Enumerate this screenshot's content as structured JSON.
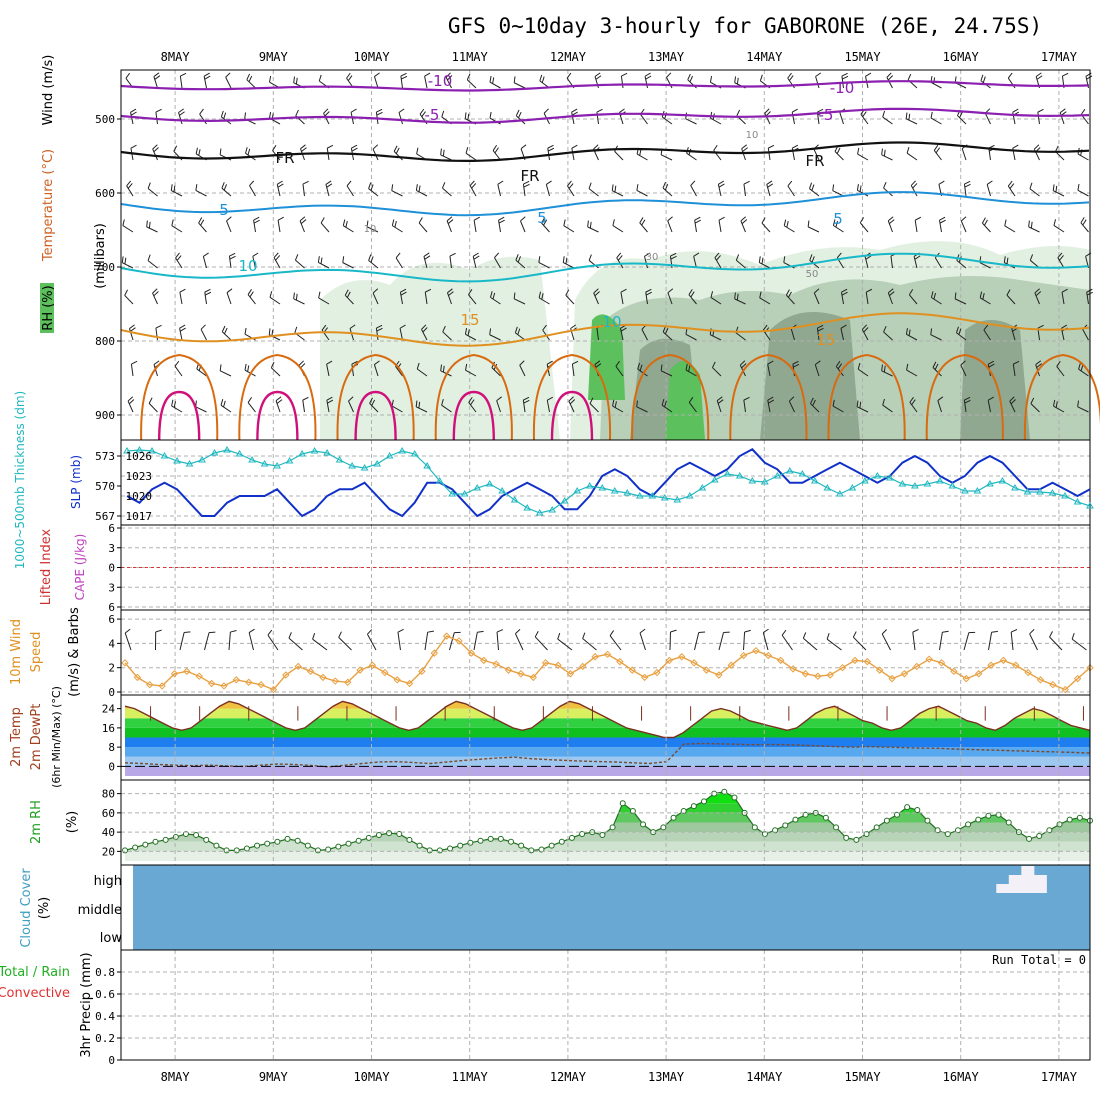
{
  "title": "GFS 0~10day 3-hourly for GABORONE (26E, 24.75S)",
  "dates": [
    "8MAY",
    "9MAY",
    "10MAY",
    "11MAY",
    "12MAY",
    "13MAY",
    "14MAY",
    "15MAY",
    "16MAY",
    "17MAY"
  ],
  "colors": {
    "purple": "#8a1fb0",
    "black": "#111111",
    "blue": "#1e90d8",
    "cyan": "#18b8c8",
    "orange": "#e09020",
    "darkorange": "#d86a10",
    "magenta": "#d0107a",
    "slp": "#1030c8",
    "thick": "#20b8c0",
    "wind10": "#e8a040",
    "rhgreen": "#30b030",
    "cloud": "#6aa8d4",
    "grid": "#b0b0b0",
    "red": "#e03030"
  },
  "panels": {
    "upper": {
      "ylabel": "(millibars)",
      "legend_wind": "Wind (m/s)",
      "legend_temp": "Temperature (°C)",
      "legend_rh": "RH (%)",
      "yticks": [
        500,
        600,
        700,
        800,
        900
      ],
      "ylim": [
        450,
        950
      ],
      "contour_labels": {
        "m10": "-10",
        "m5": "-5",
        "fr": "FR",
        "p5": "5",
        "p10": "10",
        "p15": "15",
        "rh10": "10",
        "rh30": "30",
        "rh50": "50"
      }
    },
    "slp": {
      "ylabel_thick": "1000~500mb Thickness (dm)",
      "ylabel_slp": "SLP (mb)",
      "thick_ticks": [
        567,
        570,
        573
      ],
      "slp_ticks": [
        1017,
        1020,
        1023,
        1026
      ]
    },
    "li": {
      "ylabel_li": "Lifted Index",
      "ylabel_cape": "CAPE (J/kg)",
      "ticks": [
        "6",
        "3",
        "0",
        "3",
        "6"
      ]
    },
    "wind10": {
      "ylabel1": "10m Wind",
      "ylabel2": "Speed",
      "ylabel3": "(m/s) & Barbs",
      "ticks": [
        0,
        2,
        4,
        6
      ],
      "ylim": [
        0,
        6.5
      ]
    },
    "temp": {
      "ylabel1": "2m Temp",
      "ylabel2": "2m DewPt",
      "ylabel3": "(6hr Min/Max) (°C)",
      "ticks": [
        0,
        8,
        16,
        24
      ],
      "ylim": [
        -4,
        28
      ]
    },
    "rh": {
      "ylabel1": "2m RH",
      "ylabel2": "(%)",
      "ticks": [
        20,
        40,
        60,
        80
      ],
      "ylim": [
        10,
        90
      ]
    },
    "cloud": {
      "ylabel1": "Cloud Cover",
      "ylabel2": "(%)",
      "levels": [
        "high",
        "middle",
        "low"
      ]
    },
    "precip": {
      "ylabel1": "Total / Rain",
      "ylabel2": "Convective",
      "ylabel3": "3hr Precip (mm)",
      "ticks": [
        "0",
        "0.2",
        "0.4",
        "0.6",
        "0.8"
      ],
      "run_total": "Run Total = 0"
    }
  },
  "chart_data": {
    "type": "line",
    "time_axis": "hours since 8MAY 00UTC, 3-hourly, 0-225",
    "slp_mb": [
      1020,
      1019,
      1021,
      1022,
      1021,
      1019,
      1017,
      1017,
      1019,
      1020,
      1020,
      1020,
      1021,
      1019,
      1017,
      1018,
      1020,
      1021,
      1021,
      1022,
      1020,
      1018,
      1017,
      1019,
      1022,
      1022,
      1021,
      1019,
      1017,
      1018,
      1020,
      1021,
      1022,
      1021,
      1020,
      1018,
      1018,
      1020,
      1023,
      1024,
      1023,
      1021,
      1020,
      1022,
      1024,
      1025,
      1024,
      1023,
      1024,
      1026,
      1027,
      1025,
      1024,
      1022,
      1022,
      1023,
      1024,
      1025,
      1024,
      1023,
      1022,
      1023,
      1025,
      1026,
      1025,
      1023,
      1022,
      1023,
      1025,
      1026,
      1025,
      1023,
      1021,
      1021,
      1022,
      1021,
      1020,
      1021
    ],
    "thickness_dm": [
      573.5,
      573.6,
      573.5,
      573.0,
      572.5,
      572.2,
      572.6,
      573.3,
      573.6,
      573.2,
      572.6,
      572.2,
      572.0,
      572.5,
      573.2,
      573.5,
      573.3,
      572.6,
      572.0,
      571.8,
      572.2,
      573.0,
      573.5,
      573.2,
      572.0,
      570.5,
      569.2,
      569.2,
      569.8,
      570.2,
      569.5,
      568.6,
      567.8,
      567.3,
      567.6,
      568.5,
      569.5,
      570.0,
      569.8,
      569.5,
      569.3,
      569.0,
      569.0,
      568.8,
      568.6,
      569.0,
      569.8,
      570.6,
      571.2,
      571.0,
      570.5,
      570.4,
      571.0,
      571.5,
      571.2,
      570.5,
      569.8,
      569.2,
      569.8,
      570.5,
      571.0,
      570.8,
      570.2,
      570.0,
      570.2,
      570.5,
      570.0,
      569.5,
      569.5,
      570.2,
      570.5,
      569.8,
      569.4,
      569.4,
      569.3,
      569.0,
      568.4,
      568.0
    ],
    "wind10_ms": [
      2.4,
      1.2,
      0.6,
      0.5,
      1.5,
      1.7,
      1.3,
      0.7,
      0.5,
      1.0,
      0.8,
      0.6,
      0.2,
      1.4,
      2.1,
      1.7,
      1.2,
      0.9,
      0.8,
      1.8,
      2.2,
      1.6,
      1.0,
      0.7,
      1.7,
      3.2,
      4.6,
      4.2,
      3.2,
      2.6,
      2.3,
      1.8,
      1.5,
      1.2,
      2.4,
      2.2,
      1.5,
      2.1,
      2.9,
      3.1,
      2.5,
      1.8,
      1.2,
      1.6,
      2.6,
      2.9,
      2.4,
      1.8,
      1.4,
      2.2,
      3.0,
      3.4,
      3.0,
      2.6,
      1.9,
      1.5,
      1.3,
      1.4,
      2.0,
      2.6,
      2.5,
      1.8,
      1.1,
      1.5,
      2.1,
      2.7,
      2.4,
      1.7,
      1.1,
      1.5,
      2.2,
      2.6,
      2.2,
      1.6,
      1.0,
      0.6,
      0.2,
      1.1,
      2.0
    ],
    "temp2m_c": [
      25,
      24,
      22,
      20,
      18,
      16,
      15,
      16,
      19,
      22,
      25,
      27,
      26,
      24,
      22,
      20,
      18,
      16,
      15,
      16,
      19,
      22,
      25,
      27,
      26,
      24,
      22,
      20,
      18,
      16,
      15,
      16,
      19,
      22,
      25,
      27,
      26,
      24,
      22,
      20,
      18,
      16,
      15,
      16,
      19,
      22,
      25,
      27,
      26,
      24,
      22,
      20,
      18,
      16,
      15,
      14,
      13,
      12,
      12,
      14,
      17,
      20,
      23,
      24,
      23,
      21,
      19,
      18,
      17,
      16,
      15,
      16,
      19,
      22,
      24,
      25,
      23,
      21,
      19,
      18,
      16,
      15,
      16,
      19,
      22,
      24,
      25,
      23,
      21,
      19,
      18,
      16,
      15,
      17,
      20,
      22,
      24,
      23,
      21,
      19,
      17,
      16,
      15
    ],
    "dewpt2m_c": [
      1.5,
      1.2,
      0.8,
      0.5,
      0.3,
      0.5,
      0.2,
      0.0,
      0.5,
      1.0,
      0.8,
      0.4,
      -0.2,
      0.5,
      1.2,
      1.8,
      2.0,
      1.6,
      1.2,
      1.8,
      2.5,
      3.0,
      3.5,
      3.8,
      3.2,
      2.8,
      2.5,
      2.2,
      2.0,
      1.8,
      1.5,
      1.2,
      2.0,
      9.2,
      9.5,
      9.4,
      9.2,
      9.0,
      9.1,
      9.0,
      8.8,
      8.5,
      8.2,
      8.0,
      8.2,
      8.0,
      7.8,
      7.6,
      7.5,
      7.2,
      7.0,
      6.8,
      6.6,
      6.4,
      6.2,
      6.0,
      5.8,
      5.5
    ],
    "rh2m_pct": [
      21,
      24,
      27,
      30,
      32,
      35,
      38,
      37,
      32,
      26,
      21,
      21,
      23,
      26,
      28,
      30,
      33,
      31,
      26,
      21,
      22,
      25,
      28,
      31,
      34,
      37,
      39,
      38,
      32,
      26,
      21,
      21,
      23,
      26,
      29,
      31,
      33,
      33,
      30,
      26,
      21,
      22,
      26,
      30,
      34,
      38,
      40,
      37,
      45,
      70,
      62,
      48,
      40,
      45,
      55,
      62,
      67,
      72,
      80,
      82,
      76,
      60,
      45,
      38,
      42,
      47,
      53,
      58,
      60,
      55,
      45,
      34,
      32,
      38,
      45,
      52,
      58,
      66,
      63,
      52,
      42,
      38,
      42,
      48,
      53,
      57,
      58,
      50,
      40,
      33,
      36,
      42,
      48,
      53,
      55,
      52
    ],
    "cloud_high_pct": [
      0,
      0,
      0,
      0,
      0,
      0,
      0,
      0,
      0,
      0,
      0,
      0,
      0,
      0,
      0,
      0,
      0,
      0,
      0,
      0,
      0,
      0,
      0,
      0,
      0,
      0,
      0,
      0,
      0,
      0,
      0,
      0,
      0,
      0,
      0,
      0,
      0,
      0,
      0,
      0,
      0,
      0,
      0,
      0,
      0,
      0,
      0,
      0,
      0,
      0,
      0,
      0,
      0,
      0,
      0,
      0,
      0,
      0,
      0,
      0,
      0,
      0,
      0,
      0,
      0,
      0,
      0,
      0,
      0,
      0,
      20,
      40,
      60,
      40,
      0,
      0,
      0,
      0
    ],
    "precip_total_mm": 0
  }
}
